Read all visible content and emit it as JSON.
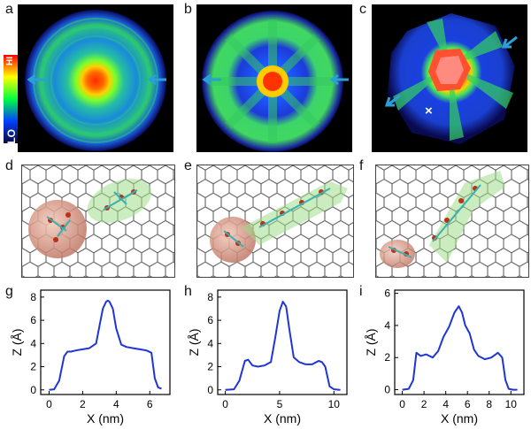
{
  "panel_labels": [
    "a",
    "b",
    "c",
    "d",
    "e",
    "f",
    "g",
    "h",
    "i"
  ],
  "colorbar": {
    "high_label": "HI",
    "low_label": "LO"
  },
  "marker_symbol": "×",
  "colors": {
    "plot_line": "#1f35d6",
    "arrow": "#2aa0d6",
    "graphene": "#444444"
  },
  "chart_data": [
    {
      "type": "line",
      "xlabel": "X (nm)",
      "ylabel": "Z (Å)",
      "xlim": [
        -0.5,
        7.2
      ],
      "ylim": [
        -0.4,
        8.6
      ],
      "xticks": [
        0,
        2,
        4,
        6
      ],
      "yticks": [
        0,
        2,
        4,
        6,
        8
      ],
      "x": [
        0.0,
        0.3,
        0.6,
        0.9,
        1.1,
        1.3,
        1.6,
        2.0,
        2.4,
        2.8,
        3.0,
        3.2,
        3.4,
        3.5,
        3.6,
        3.8,
        4.0,
        4.3,
        4.6,
        5.0,
        5.4,
        5.8,
        6.1,
        6.3,
        6.5,
        6.7
      ],
      "y": [
        0.0,
        0.05,
        0.8,
        2.9,
        3.3,
        3.3,
        3.4,
        3.5,
        3.6,
        4.0,
        5.5,
        7.0,
        7.6,
        7.7,
        7.6,
        7.0,
        5.3,
        3.9,
        3.7,
        3.6,
        3.5,
        3.4,
        3.2,
        1.0,
        0.2,
        0.1
      ]
    },
    {
      "type": "line",
      "xlabel": "X (nm)",
      "ylabel": "Z (Å)",
      "xlim": [
        -0.7,
        11.2
      ],
      "ylim": [
        -0.4,
        8.6
      ],
      "xticks": [
        0,
        5,
        10
      ],
      "yticks": [
        0,
        2,
        4,
        6,
        8
      ],
      "x": [
        0.0,
        0.8,
        1.3,
        1.8,
        2.1,
        2.5,
        3.0,
        3.6,
        4.2,
        4.6,
        5.0,
        5.3,
        5.6,
        5.9,
        6.3,
        6.8,
        7.4,
        8.0,
        8.6,
        8.9,
        9.2,
        9.6,
        10.0,
        10.6
      ],
      "y": [
        0.0,
        0.05,
        0.8,
        2.5,
        2.6,
        2.1,
        2.0,
        2.1,
        2.4,
        4.5,
        6.8,
        7.6,
        7.2,
        5.2,
        2.8,
        2.4,
        2.2,
        2.2,
        2.5,
        2.4,
        2.0,
        0.3,
        0.05,
        0.0
      ]
    },
    {
      "type": "line",
      "xlabel": "X (nm)",
      "ylabel": "Z (Å)",
      "xlim": [
        -0.7,
        11.2
      ],
      "ylim": [
        -0.3,
        6.2
      ],
      "xticks": [
        0,
        2,
        4,
        6,
        8,
        10
      ],
      "yticks": [
        0,
        2,
        4,
        6
      ],
      "x": [
        0.0,
        0.6,
        1.0,
        1.3,
        1.7,
        2.2,
        2.8,
        3.3,
        3.8,
        4.3,
        4.8,
        5.2,
        5.5,
        5.8,
        6.2,
        6.6,
        7.0,
        7.6,
        8.2,
        8.8,
        9.2,
        9.5,
        9.8,
        10.2,
        10.6
      ],
      "y": [
        0.0,
        0.05,
        0.6,
        2.3,
        2.1,
        2.2,
        2.0,
        2.4,
        3.3,
        3.9,
        4.8,
        5.2,
        4.8,
        4.0,
        3.5,
        2.5,
        2.1,
        1.9,
        2.0,
        2.3,
        2.0,
        0.6,
        0.05,
        0.0,
        0.0
      ]
    }
  ]
}
